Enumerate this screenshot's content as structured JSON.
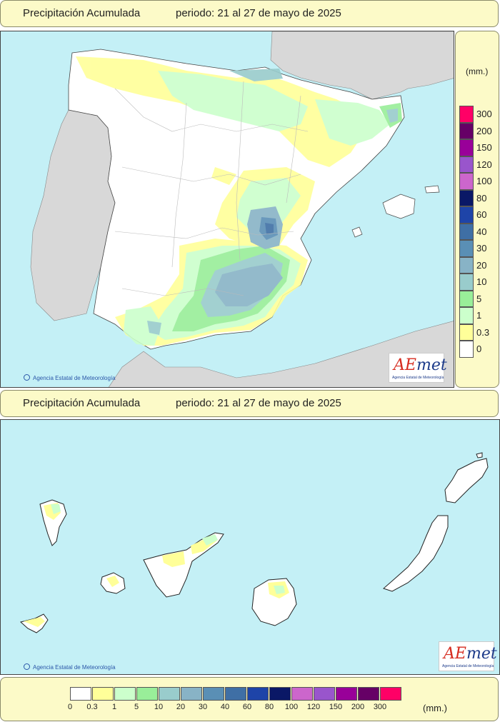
{
  "panels": {
    "peninsula": {
      "title": "Precipitación Acumulada",
      "period": "periodo: 21 al 27 de mayo de 2025"
    },
    "canarias": {
      "title": "Precipitación Acumulada",
      "period": "periodo: 21 al 27 de mayo de 2025"
    }
  },
  "credit": "Agencia Estatal de Meteorología",
  "logo": {
    "brand_a": "A",
    "brand_e": "E",
    "brand_rest": "met",
    "subtitle": "Agencia Estatal de Meteorología"
  },
  "legend": {
    "unit": "(mm.)",
    "classes": [
      {
        "label": "0",
        "color": "#ffffff"
      },
      {
        "label": "0.3",
        "color": "#ffff99"
      },
      {
        "label": "1",
        "color": "#ccffcc"
      },
      {
        "label": "5",
        "color": "#99ee99"
      },
      {
        "label": "10",
        "color": "#99cccc"
      },
      {
        "label": "20",
        "color": "#88b3c6"
      },
      {
        "label": "30",
        "color": "#5a8fb5"
      },
      {
        "label": "40",
        "color": "#3f6fa5"
      },
      {
        "label": "60",
        "color": "#1e44a8"
      },
      {
        "label": "80",
        "color": "#0a1866"
      },
      {
        "label": "100",
        "color": "#cc66cc"
      },
      {
        "label": "120",
        "color": "#9955cc"
      },
      {
        "label": "150",
        "color": "#990099"
      },
      {
        "label": "200",
        "color": "#660066"
      },
      {
        "label": "300",
        "color": "#ff0066"
      }
    ]
  },
  "colors": {
    "sea": "#c4f0f6",
    "foreign_land": "#d8d8d8",
    "panel_bg": "#fcfac8",
    "land": "#ffffff"
  }
}
